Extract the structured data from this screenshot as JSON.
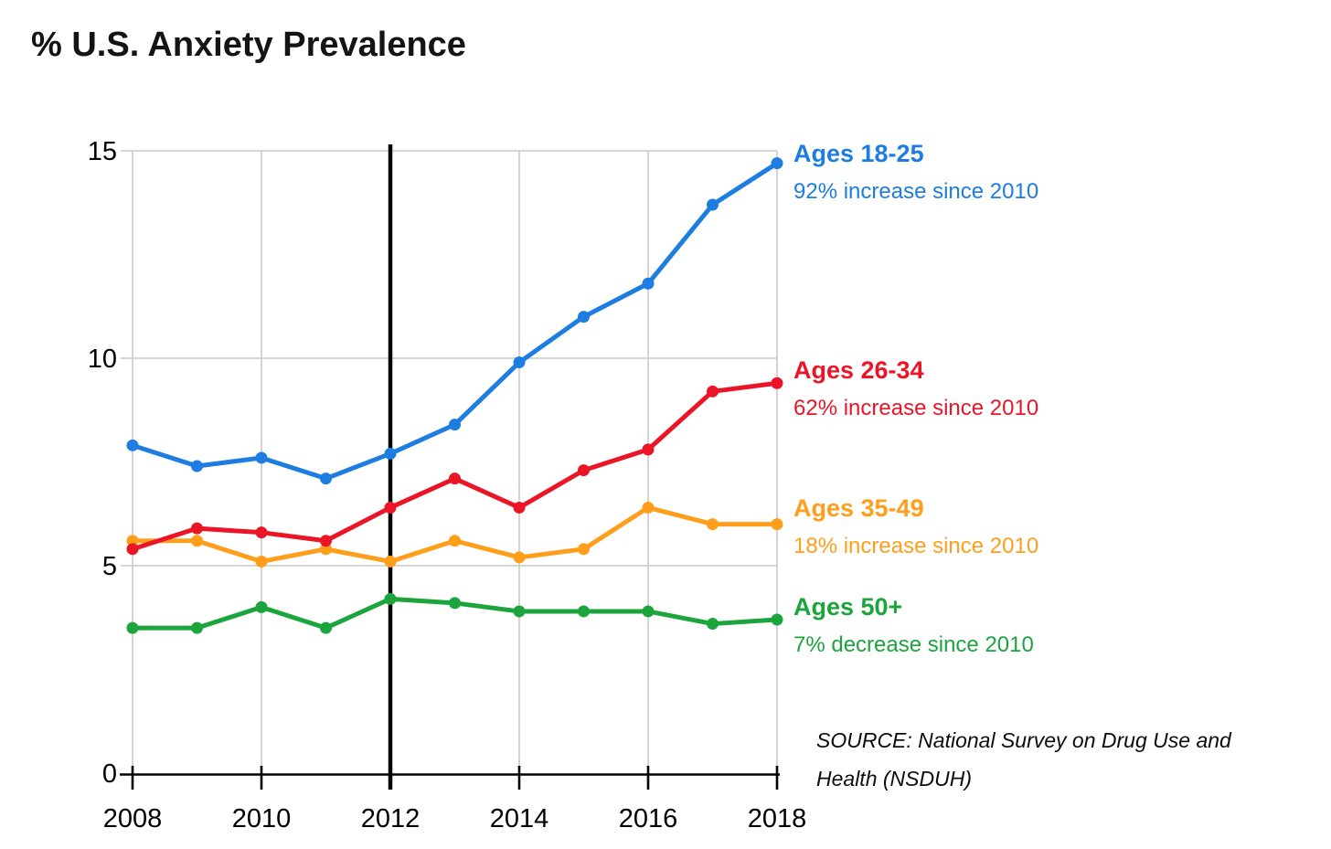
{
  "title": "% U.S. Anxiety Prevalence",
  "source": {
    "line1": "SOURCE: National Survey on Drug Use and",
    "line2": "Health (NSDUH)"
  },
  "chart_data": {
    "type": "line",
    "title": "% U.S. Anxiety Prevalence",
    "xlabel": "",
    "ylabel": "",
    "x": [
      2008,
      2009,
      2010,
      2011,
      2012,
      2013,
      2014,
      2015,
      2016,
      2017,
      2018
    ],
    "xlim": [
      2008,
      2018
    ],
    "ylim": [
      0,
      15
    ],
    "x_tick_labels": [
      "2008",
      "2010",
      "2012",
      "2014",
      "2016",
      "2018"
    ],
    "y_tick_labels": [
      "0",
      "5",
      "10",
      "15"
    ],
    "grid": true,
    "grid_color": "#c9c9c9",
    "axis_color": "#000000",
    "reference_line_x": 2012,
    "legend_position": "right",
    "series": [
      {
        "name": "Ages 18-25",
        "color": "#1d7de0",
        "annotation": "92% increase since 2010",
        "values": [
          7.9,
          7.4,
          7.6,
          7.1,
          7.7,
          8.4,
          9.9,
          11.0,
          11.8,
          13.7,
          14.7
        ]
      },
      {
        "name": "Ages 26-34",
        "color": "#ea1628",
        "annotation": "62% increase since 2010",
        "values": [
          5.4,
          5.9,
          5.8,
          5.6,
          6.4,
          7.1,
          6.4,
          7.3,
          7.8,
          9.2,
          9.4
        ]
      },
      {
        "name": "Ages 35-49",
        "color": "#ff9e1b",
        "annotation": "18% increase since 2010",
        "values": [
          5.6,
          5.6,
          5.1,
          5.4,
          5.1,
          5.6,
          5.2,
          5.4,
          6.4,
          6.0,
          6.0
        ]
      },
      {
        "name": "Ages 50+",
        "color": "#1ca53c",
        "annotation": "7% decrease since 2010",
        "values": [
          3.5,
          3.5,
          4.0,
          3.5,
          4.2,
          4.1,
          3.9,
          3.9,
          3.9,
          3.6,
          3.7
        ]
      }
    ]
  }
}
